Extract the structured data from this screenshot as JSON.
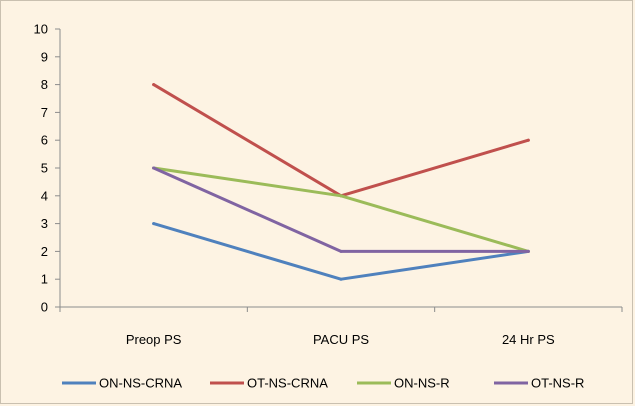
{
  "chart_data": {
    "type": "line",
    "categories": [
      "Preop PS",
      "PACU PS",
      "24 Hr PS"
    ],
    "ylim": [
      0,
      10
    ],
    "yticks": [
      0,
      1,
      2,
      3,
      4,
      5,
      6,
      7,
      8,
      9,
      10
    ],
    "grid": false,
    "legend_position": "bottom",
    "series": [
      {
        "name": "ON-NS-CRNA",
        "color": "#4f81bd",
        "values": [
          3,
          1,
          2
        ]
      },
      {
        "name": "OT-NS-CRNA",
        "color": "#c0504d",
        "values": [
          8,
          4,
          6
        ]
      },
      {
        "name": "ON-NS-R",
        "color": "#9bbb59",
        "values": [
          5,
          4,
          2
        ]
      },
      {
        "name": "OT-NS-R",
        "color": "#8064a2",
        "values": [
          5,
          2,
          2
        ]
      }
    ]
  }
}
